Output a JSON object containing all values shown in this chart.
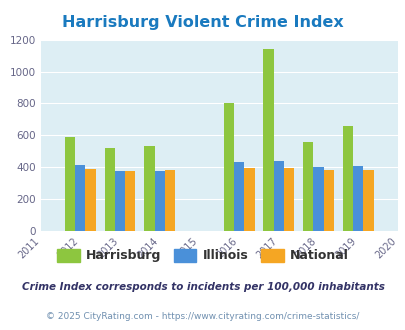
{
  "title": "Harrisburg Violent Crime Index",
  "years": [
    2011,
    2012,
    2013,
    2014,
    2015,
    2016,
    2017,
    2018,
    2019,
    2020
  ],
  "data_years": [
    2012,
    2013,
    2014,
    2016,
    2017,
    2018,
    2019
  ],
  "harrisburg": [
    590,
    520,
    535,
    805,
    1140,
    560,
    660
  ],
  "illinois": [
    415,
    375,
    375,
    430,
    440,
    400,
    408
  ],
  "national": [
    390,
    375,
    382,
    398,
    398,
    382,
    380
  ],
  "harrisburg_color": "#8dc63f",
  "illinois_color": "#4a90d9",
  "national_color": "#f5a623",
  "fig_bg_color": "#ffffff",
  "plot_bg": "#ddeef4",
  "title_color": "#1a7abf",
  "ylim": [
    0,
    1200
  ],
  "yticks": [
    0,
    200,
    400,
    600,
    800,
    1000,
    1200
  ],
  "bar_width": 0.26,
  "subtitle": "Crime Index corresponds to incidents per 100,000 inhabitants",
  "footer": "© 2025 CityRating.com - https://www.cityrating.com/crime-statistics/",
  "legend_labels": [
    "Harrisburg",
    "Illinois",
    "National"
  ],
  "subtitle_color": "#333366",
  "footer_color": "#7090b0"
}
